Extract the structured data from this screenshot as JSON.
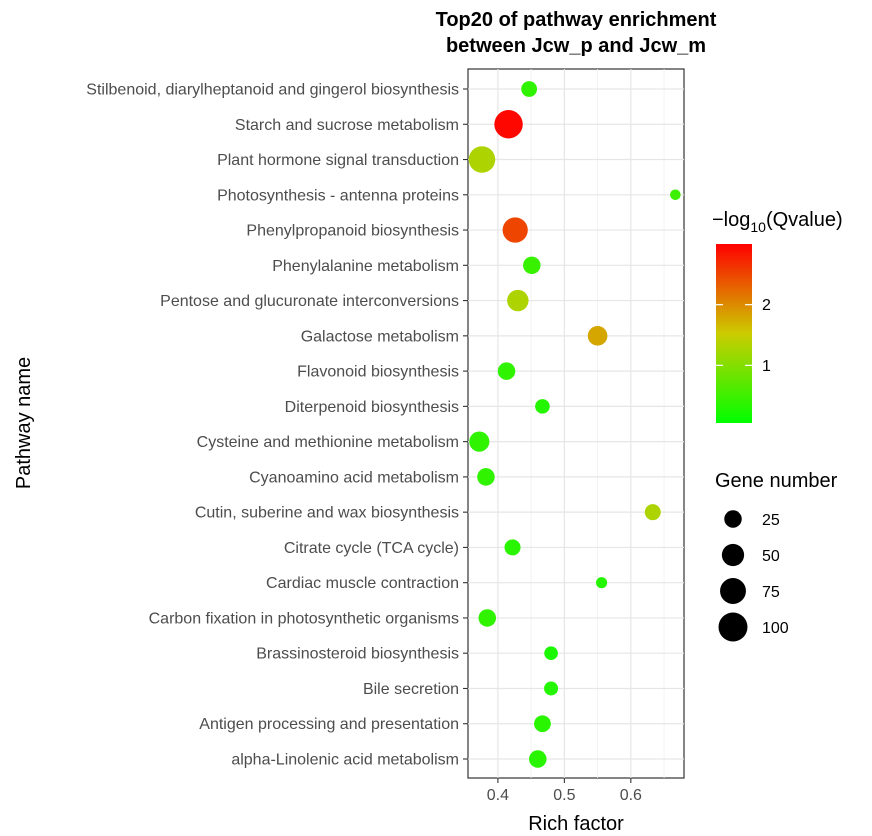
{
  "chart_data": {
    "type": "scatter",
    "title_lines": [
      "Top20 of pathway enrichment",
      "between Jcw_p and Jcw_m"
    ],
    "xlabel": "Rich factor",
    "ylabel": "Pathway name",
    "xlim": [
      0.355,
      0.68
    ],
    "x_ticks": [
      0.4,
      0.5,
      0.6
    ],
    "x_tick_labels": [
      "0.4",
      "0.5",
      "0.6"
    ],
    "grid": true,
    "categories": [
      "alpha-Linolenic acid metabolism",
      "Antigen processing and presentation",
      "Bile secretion",
      "Brassinosteroid biosynthesis",
      "Carbon fixation in photosynthetic organisms",
      "Cardiac muscle contraction",
      "Citrate cycle (TCA cycle)",
      "Cutin, suberine and wax biosynthesis",
      "Cyanoamino acid metabolism",
      "Cysteine and methionine metabolism",
      "Diterpenoid biosynthesis",
      "Flavonoid biosynthesis",
      "Galactose metabolism",
      "Pentose and glucuronate interconversions",
      "Phenylalanine metabolism",
      "Phenylpropanoid biosynthesis",
      "Photosynthesis - antenna proteins",
      "Plant hormone signal transduction",
      "Starch and sucrose metabolism",
      "Stilbenoid, diarylheptanoid and gingerol biosynthesis"
    ],
    "points": [
      {
        "pathway": "alpha-Linolenic acid metabolism",
        "rich_factor": 0.46,
        "gene_number": 25,
        "neg_log10_q": 0.35
      },
      {
        "pathway": "Antigen processing and presentation",
        "rich_factor": 0.467,
        "gene_number": 22,
        "neg_log10_q": 0.35
      },
      {
        "pathway": "Bile secretion",
        "rich_factor": 0.48,
        "gene_number": 12,
        "neg_log10_q": 0.3
      },
      {
        "pathway": "Brassinosteroid biosynthesis",
        "rich_factor": 0.48,
        "gene_number": 11,
        "neg_log10_q": 0.25
      },
      {
        "pathway": "Carbon fixation in photosynthetic organisms",
        "rich_factor": 0.384,
        "gene_number": 25,
        "neg_log10_q": 0.4
      },
      {
        "pathway": "Cardiac muscle contraction",
        "rich_factor": 0.556,
        "gene_number": 5,
        "neg_log10_q": 0.3
      },
      {
        "pathway": "Citrate cycle (TCA cycle)",
        "rich_factor": 0.422,
        "gene_number": 19,
        "neg_log10_q": 0.35
      },
      {
        "pathway": "Cutin, suberine and wax biosynthesis",
        "rich_factor": 0.633,
        "gene_number": 19,
        "neg_log10_q": 1.3
      },
      {
        "pathway": "Cyanoamino acid metabolism",
        "rich_factor": 0.382,
        "gene_number": 25,
        "neg_log10_q": 0.4
      },
      {
        "pathway": "Cysteine and methionine metabolism",
        "rich_factor": 0.372,
        "gene_number": 38,
        "neg_log10_q": 0.4
      },
      {
        "pathway": "Diterpenoid biosynthesis",
        "rich_factor": 0.467,
        "gene_number": 14,
        "neg_log10_q": 0.3
      },
      {
        "pathway": "Flavonoid biosynthesis",
        "rich_factor": 0.413,
        "gene_number": 25,
        "neg_log10_q": 0.4
      },
      {
        "pathway": "Galactose metabolism",
        "rich_factor": 0.55,
        "gene_number": 35,
        "neg_log10_q": 1.8
      },
      {
        "pathway": "Pentose and glucuronate interconversions",
        "rich_factor": 0.43,
        "gene_number": 45,
        "neg_log10_q": 1.3
      },
      {
        "pathway": "Phenylalanine metabolism",
        "rich_factor": 0.451,
        "gene_number": 25,
        "neg_log10_q": 0.45
      },
      {
        "pathway": "Phenylpropanoid biosynthesis",
        "rich_factor": 0.426,
        "gene_number": 70,
        "neg_log10_q": 2.5
      },
      {
        "pathway": "Photosynthesis - antenna proteins",
        "rich_factor": 0.667,
        "gene_number": 4,
        "neg_log10_q": 0.5
      },
      {
        "pathway": "Plant hormone signal transduction",
        "rich_factor": 0.376,
        "gene_number": 80,
        "neg_log10_q": 1.3
      },
      {
        "pathway": "Starch and sucrose metabolism",
        "rich_factor": 0.416,
        "gene_number": 95,
        "neg_log10_q": 2.95
      },
      {
        "pathway": "Stilbenoid, diarylheptanoid and gingerol biosynthesis",
        "rich_factor": 0.447,
        "gene_number": 18,
        "neg_log10_q": 0.4
      }
    ],
    "color_legend": {
      "title_prefix": "−log",
      "title_sub": "10",
      "title_suffix": "(Qvalue)",
      "ticks": [
        1,
        2
      ],
      "tick_labels": [
        "1",
        "2"
      ],
      "range": [
        0.05,
        3.0
      ],
      "low_color": "#00ff00",
      "mid_color": "#cccc00",
      "high_color": "#ff0000"
    },
    "size_legend": {
      "title": "Gene number",
      "values": [
        25,
        50,
        75,
        100
      ],
      "labels": [
        "25",
        "50",
        "75",
        "100"
      ]
    }
  }
}
